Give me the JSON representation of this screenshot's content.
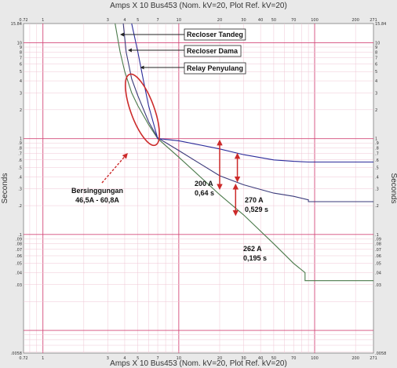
{
  "chart_data": {
    "type": "line",
    "title": "Amps X 10 Bus453 (Nom. kV=20, Plot Ref. kV=20)",
    "bottom_title": "Amps X 10 Bus453 (Nom. kV=20, Plot Ref. kV=20)",
    "ylabel": "Seconds",
    "x_scale": "log",
    "y_scale": "log",
    "xlim": [
      0.72,
      271
    ],
    "ylim": [
      0.0058,
      15.84
    ],
    "grid": true,
    "x_ticks": [
      "0.72",
      "1",
      "3",
      "4",
      "5",
      "7",
      "10",
      "20",
      "30",
      "40",
      "50",
      "70",
      "100",
      "200",
      "271"
    ],
    "y_ticks": [
      "15.84",
      "10",
      "9",
      "8",
      "7",
      "6",
      "5",
      "4",
      "3",
      "2",
      "1",
      ".9",
      ".8",
      ".7",
      ".6",
      ".5",
      ".4",
      ".3",
      ".2",
      ".1",
      ".09",
      ".08",
      ".07",
      ".06",
      ".05",
      ".04",
      ".03",
      ".0058"
    ],
    "series": [
      {
        "name": "Recloser Tandeg",
        "color": "#4b7a4b",
        "x": [
          3.4,
          3.7,
          4.0,
          4.5,
          5.0,
          6.0,
          7.0,
          10,
          20,
          30,
          50,
          70,
          85,
          85,
          120,
          271
        ],
        "y": [
          15.84,
          8.0,
          5.0,
          3.0,
          2.2,
          1.4,
          1.0,
          0.64,
          0.26,
          0.16,
          0.08,
          0.05,
          0.04,
          0.033,
          0.033,
          0.033
        ]
      },
      {
        "name": "Recloser Dama",
        "color": "#3a3a7a",
        "x": [
          3.9,
          4.1,
          4.5,
          5.0,
          6.0,
          7.0,
          10,
          20,
          30,
          50,
          70,
          90,
          90,
          120,
          271
        ],
        "y": [
          15.84,
          8.0,
          4.2,
          2.8,
          1.5,
          1.02,
          0.75,
          0.41,
          0.33,
          0.27,
          0.25,
          0.23,
          0.22,
          0.22,
          0.22
        ]
      },
      {
        "name": "Relay Penyulang",
        "color": "#2b2b9a",
        "x": [
          4.5,
          5.0,
          5.5,
          6.0,
          7.0,
          10,
          20,
          30,
          50,
          70,
          90,
          100,
          271
        ],
        "y": [
          15.84,
          8.0,
          4.0,
          2.2,
          1.0,
          0.95,
          0.78,
          0.68,
          0.6,
          0.58,
          0.57,
          0.57,
          0.57
        ]
      }
    ],
    "callouts": [
      {
        "label": "Recloser Tandeg",
        "target_series": 0
      },
      {
        "label": "Recloser Dama",
        "target_series": 1
      },
      {
        "label": "Relay Penyulang",
        "target_series": 2
      }
    ],
    "annotations": {
      "overlap_line1": "Bersinggungan",
      "overlap_line2": "46,5A - 60,8A",
      "ann1_line1": "200 A",
      "ann1_line2": "0,64 s",
      "ann2_line1": "270 A",
      "ann2_line2": "0,529 s",
      "ann3_line1": "262 A",
      "ann3_line2": "0,195 s"
    }
  },
  "colors": {
    "background": "#e9e9e9",
    "plot_bg": "#ffffff",
    "major_grid": "#d44a7a",
    "minor_grid": "#efc6d4",
    "annotation": "#cc2a2a"
  }
}
